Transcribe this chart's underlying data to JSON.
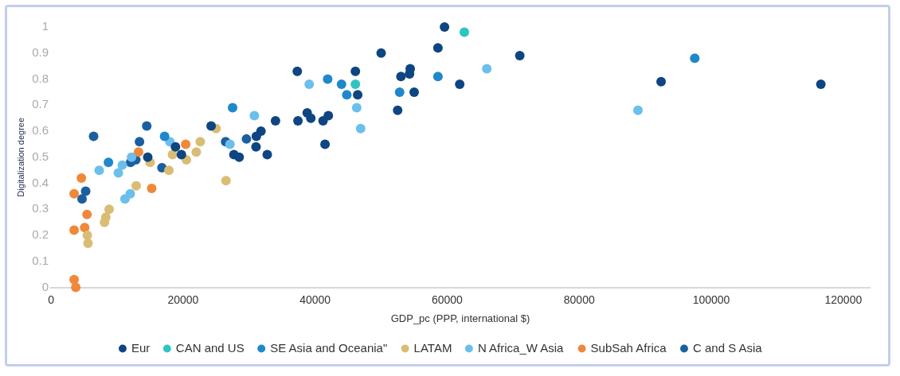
{
  "chart_data": {
    "type": "scatter",
    "xlabel": "GDP_pc (PPP, international $)",
    "ylabel": "Digitalization degree",
    "xlim": [
      0,
      124000
    ],
    "ylim": [
      0,
      1
    ],
    "xticks": [
      0,
      20000,
      40000,
      60000,
      80000,
      100000,
      120000
    ],
    "yticks": [
      0,
      0.1,
      0.2,
      0.3,
      0.4,
      0.5,
      0.6,
      0.7,
      0.8,
      0.9,
      1
    ],
    "grid": false,
    "legend": "bottom",
    "marker": "circle",
    "series": [
      {
        "name": "Eur",
        "color": "#0e4582",
        "x": [
          14650,
          18850,
          19750,
          24250,
          27700,
          28500,
          31100,
          31050,
          31800,
          32750,
          34000,
          37300,
          37400,
          38800,
          39350,
          41200,
          42000,
          41500,
          46100,
          46450,
          50000,
          52500,
          53000,
          54300,
          54400,
          55000,
          58600,
          59600,
          61900,
          71000,
          92400,
          116600
        ],
        "values": [
          0.5,
          0.54,
          0.51,
          0.62,
          0.51,
          0.5,
          0.58,
          0.54,
          0.6,
          0.51,
          0.64,
          0.83,
          0.64,
          0.67,
          0.65,
          0.64,
          0.66,
          0.55,
          0.83,
          0.74,
          0.9,
          0.68,
          0.81,
          0.82,
          0.84,
          0.75,
          0.92,
          1.0,
          0.78,
          0.89,
          0.79,
          0.78
        ]
      },
      {
        "name": "CAN and US",
        "color": "#2ec4c4",
        "x": [
          46100,
          62600
        ],
        "values": [
          0.78,
          0.98
        ]
      },
      {
        "name": "SE Asia and Oceania\"",
        "color": "#1f87cc",
        "x": [
          8700,
          17200,
          27500,
          41900,
          44000,
          44800,
          52800,
          58600,
          97500
        ],
        "values": [
          0.48,
          0.58,
          0.69,
          0.8,
          0.78,
          0.74,
          0.75,
          0.81,
          0.88
        ]
      },
      {
        "name": "LATAM",
        "color": "#d9bd74",
        "x": [
          5500,
          5600,
          8100,
          8300,
          8800,
          12900,
          15000,
          17850,
          18400,
          20500,
          22000,
          22600,
          25000,
          26500
        ],
        "values": [
          0.2,
          0.17,
          0.25,
          0.27,
          0.3,
          0.39,
          0.48,
          0.45,
          0.51,
          0.49,
          0.52,
          0.56,
          0.61,
          0.41
        ]
      },
      {
        "name": "N Africa_W Asia",
        "color": "#6bbfec",
        "x": [
          7300,
          10200,
          10800,
          11200,
          12000,
          12200,
          18000,
          27100,
          30800,
          39100,
          46300,
          46900,
          66000,
          88900
        ],
        "values": [
          0.45,
          0.44,
          0.47,
          0.34,
          0.36,
          0.5,
          0.56,
          0.55,
          0.66,
          0.78,
          0.69,
          0.61,
          0.84,
          0.68
        ]
      },
      {
        "name": "SubSah Africa",
        "color": "#f0883a",
        "x": [
          3500,
          4600,
          5450,
          5100,
          3500,
          3500,
          3750,
          13250,
          15250,
          20400
        ],
        "values": [
          0.36,
          0.42,
          0.28,
          0.23,
          0.22,
          0.03,
          0.0,
          0.52,
          0.38,
          0.55
        ]
      },
      {
        "name": "C and S Asia",
        "color": "#1a5fa0",
        "x": [
          4700,
          5250,
          6450,
          12050,
          12850,
          13400,
          14500,
          16800,
          26450,
          29600
        ],
        "values": [
          0.34,
          0.37,
          0.58,
          0.48,
          0.49,
          0.56,
          0.62,
          0.46,
          0.56,
          0.57
        ]
      }
    ]
  }
}
